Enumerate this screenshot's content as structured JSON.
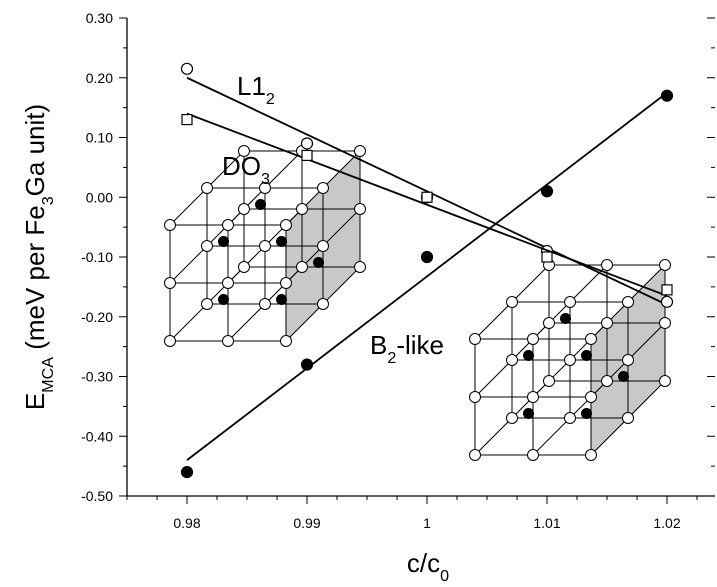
{
  "chart_data": {
    "type": "scatter",
    "x_label": [
      {
        "text": "c/c",
        "sub": false
      },
      {
        "text": "0",
        "sub": true
      }
    ],
    "y_label": [
      {
        "text": "E",
        "sub": false
      },
      {
        "text": "MCA",
        "sub": true
      },
      {
        "text": " (meV per Fe",
        "sub": false
      },
      {
        "text": "3",
        "sub": true
      },
      {
        "text": "Ga unit)",
        "sub": false
      }
    ],
    "xlim": [
      0.975,
      1.024
    ],
    "ylim": [
      -0.5,
      0.3
    ],
    "xticks": [
      0.98,
      0.99,
      1,
      1.01,
      1.02
    ],
    "yticks": [
      {
        "value": 0.3,
        "label": "0.30"
      },
      {
        "value": 0.2,
        "label": "0.20"
      },
      {
        "value": 0.1,
        "label": "0.10"
      },
      {
        "value": 0,
        "label": "0.00"
      },
      {
        "value": -0.1,
        "label": "-0.10"
      },
      {
        "value": -0.2,
        "label": "-0.20"
      },
      {
        "value": -0.3,
        "label": "-0.30"
      },
      {
        "value": -0.4,
        "label": "-0.40"
      },
      {
        "value": -0.5,
        "label": "-0.50"
      }
    ],
    "x": [
      0.98,
      0.99,
      1,
      1.01,
      1.02
    ],
    "series": [
      {
        "label": [
          {
            "text": "L1",
            "sub": false
          },
          {
            "text": "2",
            "sub": true
          }
        ],
        "marker": "circle",
        "filled": false,
        "color": "#000000",
        "values": [
          0.215,
          0.09,
          0.0,
          -0.09,
          -0.175
        ],
        "fit_x": [
          0.98,
          1.02
        ],
        "fit": [
          0.2,
          -0.18
        ]
      },
      {
        "label": [
          {
            "text": "DO",
            "sub": false
          },
          {
            "text": "3",
            "sub": true
          }
        ],
        "marker": "square",
        "filled": false,
        "color": "#000000",
        "values": [
          0.13,
          0.07,
          0.0,
          -0.1,
          -0.155
        ],
        "fit_x": [
          0.98,
          1.02
        ],
        "fit": [
          0.14,
          -0.165
        ]
      },
      {
        "label": [
          {
            "text": "B",
            "sub": false
          },
          {
            "text": "2",
            "sub": true
          },
          {
            "text": "-like",
            "sub": false
          }
        ],
        "marker": "circle",
        "filled": true,
        "color": "#000000",
        "values": [
          -0.46,
          -0.28,
          -0.1,
          0.01,
          0.17
        ],
        "fit_x": [
          0.98,
          1.02
        ],
        "fit": [
          -0.44,
          0.175
        ]
      }
    ]
  }
}
